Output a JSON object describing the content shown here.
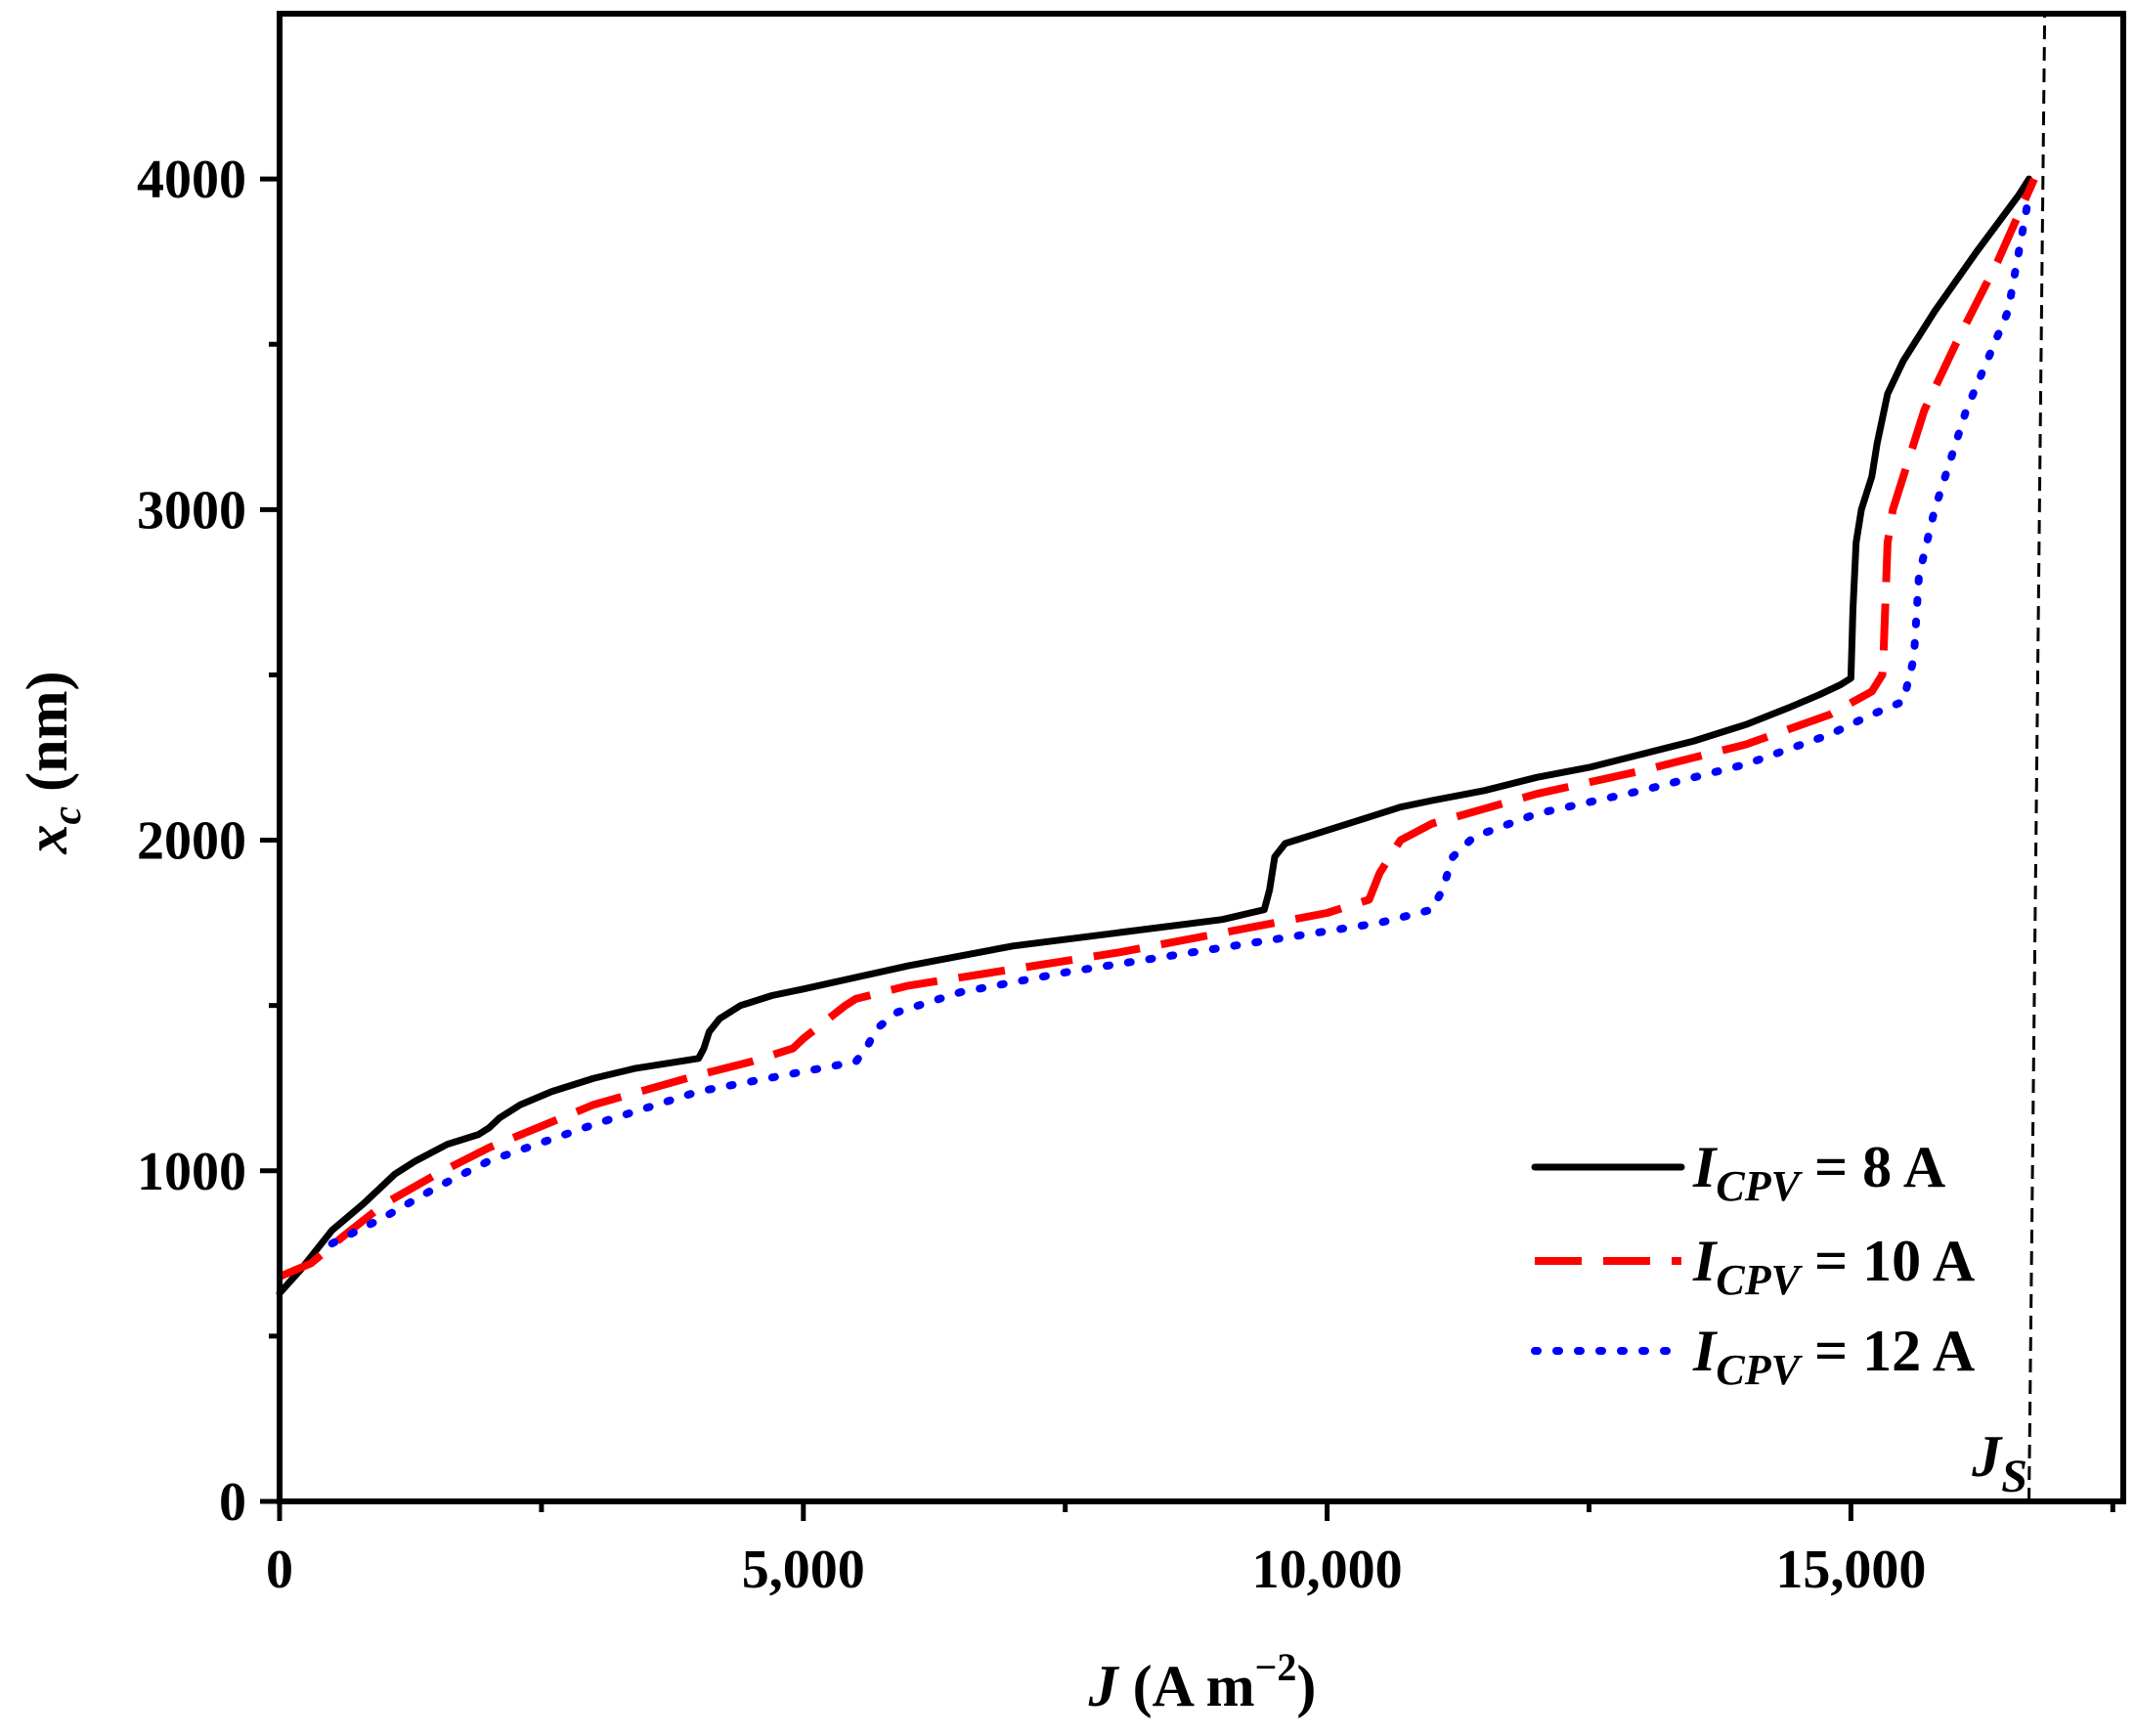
{
  "chart_data": {
    "type": "line",
    "xlabel": {
      "symbol": "J",
      "rest": " (A m",
      "sup": "−2",
      "close": ")"
    },
    "ylabel": {
      "symbol": "x",
      "sub": "c",
      "rest": "  (nm)"
    },
    "xlim": [
      0,
      17600
    ],
    "ylim": [
      0,
      4500
    ],
    "x_ticks": [
      0,
      5000,
      10000,
      15000
    ],
    "x_tick_labels": [
      "0",
      "5,000",
      "10,000",
      "15,000"
    ],
    "x_minor_ticks": [
      2500,
      7500,
      12500,
      17500
    ],
    "y_ticks": [
      0,
      1000,
      2000,
      3000,
      4000
    ],
    "y_tick_labels": [
      "0",
      "1000",
      "2000",
      "3000",
      "4000"
    ],
    "y_minor_ticks": [
      500,
      1500,
      2500,
      3500
    ],
    "grid": false,
    "legend_position": "bottom-right",
    "series": [
      {
        "name": "8 A",
        "label_prefix": "I",
        "label_sub": "CPV",
        "label_suffix": " = 8 A",
        "color": "#000000",
        "style": "solid",
        "x": [
          0,
          200,
          500,
          800,
          1000,
          1100,
          1300,
          1600,
          1900,
          2000,
          2100,
          2300,
          2600,
          3000,
          3400,
          3800,
          4000,
          4050,
          4100,
          4200,
          4400,
          4700,
          5000,
          6000,
          7000,
          8000,
          9000,
          9400,
          9450,
          9500,
          9600,
          9800,
          10000,
          10300,
          10700,
          11000,
          11500,
          12000,
          12500,
          13000,
          13500,
          14000,
          14400,
          14700,
          14900,
          15000,
          15020,
          15050,
          15100,
          15200,
          15250,
          15350,
          15500,
          15800,
          16200,
          16600,
          16700
        ],
        "y": [
          630,
          700,
          820,
          900,
          960,
          990,
          1030,
          1080,
          1110,
          1130,
          1160,
          1200,
          1240,
          1280,
          1310,
          1330,
          1340,
          1370,
          1420,
          1460,
          1500,
          1530,
          1550,
          1620,
          1680,
          1720,
          1760,
          1790,
          1850,
          1950,
          1990,
          2010,
          2030,
          2060,
          2100,
          2120,
          2150,
          2190,
          2220,
          2260,
          2300,
          2350,
          2400,
          2440,
          2470,
          2490,
          2700,
          2900,
          3000,
          3100,
          3200,
          3350,
          3450,
          3600,
          3780,
          3950,
          4000
        ]
      },
      {
        "name": "10 A",
        "label_prefix": "I",
        "label_sub": "CPV",
        "label_suffix": " = 10 A",
        "color": "#ff0000",
        "style": "dashed",
        "x": [
          0,
          300,
          600,
          1000,
          1500,
          2000,
          3000,
          4000,
          4500,
          4900,
          5000,
          5200,
          5400,
          5500,
          6000,
          7000,
          8000,
          9000,
          10000,
          10400,
          10500,
          10700,
          11000,
          12000,
          13000,
          14000,
          14800,
          15200,
          15300,
          15310,
          15350,
          15400,
          15500,
          15700,
          16000,
          16400,
          16750
        ],
        "y": [
          680,
          720,
          800,
          900,
          990,
          1070,
          1200,
          1290,
          1330,
          1370,
          1400,
          1450,
          1500,
          1520,
          1560,
          1610,
          1660,
          1720,
          1780,
          1820,
          1900,
          2000,
          2050,
          2140,
          2210,
          2290,
          2380,
          2450,
          2500,
          2550,
          2900,
          3000,
          3100,
          3300,
          3500,
          3750,
          4000
        ]
      },
      {
        "name": "12 A",
        "label_prefix": "I",
        "label_sub": "CPV",
        "label_suffix": " = 12 A",
        "color": "#0000ff",
        "style": "dotted",
        "x": [
          500,
          1000,
          1500,
          2000,
          3000,
          4000,
          5000,
          5500,
          5600,
          5700,
          5900,
          6500,
          7500,
          8500,
          9500,
          10500,
          11000,
          11100,
          11200,
          11400,
          12000,
          13000,
          14000,
          14800,
          15200,
          15500,
          15600,
          15650,
          15800,
          16100,
          16500,
          16700
        ],
        "y": [
          780,
          860,
          950,
          1030,
          1140,
          1240,
          1300,
          1330,
          1370,
          1430,
          1480,
          1540,
          1600,
          1650,
          1700,
          1750,
          1790,
          1850,
          1950,
          2010,
          2080,
          2150,
          2230,
          2320,
          2380,
          2420,
          2550,
          2800,
          3000,
          3300,
          3600,
          3950
        ]
      }
    ],
    "js_line": {
      "label": "J",
      "label_sub": "S",
      "color": "#000000",
      "style": "dashed",
      "x_bottom": 16700,
      "x_top": 16850
    }
  }
}
